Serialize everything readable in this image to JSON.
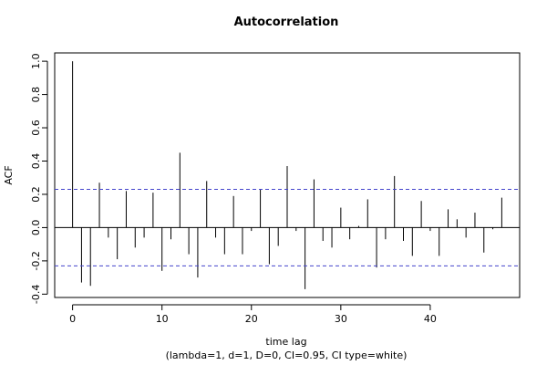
{
  "chart_data": {
    "type": "bar",
    "title": "Autocorrelation",
    "xlabel": "time lag",
    "subtitle": "(lambda=1, d=1, D=0, CI=0.95, CI type=white)",
    "ylabel": "ACF",
    "xlim": [
      -2,
      50
    ],
    "ylim": [
      -0.42,
      1.05
    ],
    "x_ticks": [
      0,
      10,
      20,
      30,
      40
    ],
    "y_ticks": [
      -0.4,
      -0.2,
      0.0,
      0.2,
      0.4,
      0.6,
      0.8,
      1.0
    ],
    "x_tick_labels": [
      "0",
      "10",
      "20",
      "30",
      "40"
    ],
    "y_tick_labels": [
      "-0.4",
      "-0.2",
      "0.0",
      "0.2",
      "0.4",
      "0.6",
      "0.8",
      "1.0"
    ],
    "confidence_band": [
      0.23,
      -0.23
    ],
    "colors": {
      "bars": "#000000",
      "ci_lines": "#4444cc",
      "zero_line": "#000000"
    },
    "lags": [
      0,
      1,
      2,
      3,
      4,
      5,
      6,
      7,
      8,
      9,
      10,
      11,
      12,
      13,
      14,
      15,
      16,
      17,
      18,
      19,
      20,
      21,
      22,
      23,
      24,
      25,
      26,
      27,
      28,
      29,
      30,
      31,
      32,
      33,
      34,
      35,
      36,
      37,
      38,
      39,
      40,
      41,
      42,
      43,
      44,
      45,
      46,
      47,
      48
    ],
    "values": [
      1.0,
      -0.33,
      -0.35,
      0.27,
      -0.06,
      -0.19,
      0.22,
      -0.12,
      -0.06,
      0.21,
      -0.26,
      -0.07,
      0.45,
      -0.16,
      -0.3,
      0.28,
      -0.06,
      -0.16,
      0.19,
      -0.16,
      -0.02,
      0.23,
      -0.22,
      -0.11,
      0.37,
      -0.02,
      -0.37,
      0.29,
      -0.08,
      -0.12,
      0.12,
      -0.07,
      0.01,
      0.17,
      -0.24,
      -0.07,
      0.31,
      -0.08,
      -0.17,
      0.16,
      -0.02,
      -0.17,
      0.11,
      0.05,
      -0.06,
      0.09,
      -0.15,
      -0.01,
      0.18
    ]
  }
}
